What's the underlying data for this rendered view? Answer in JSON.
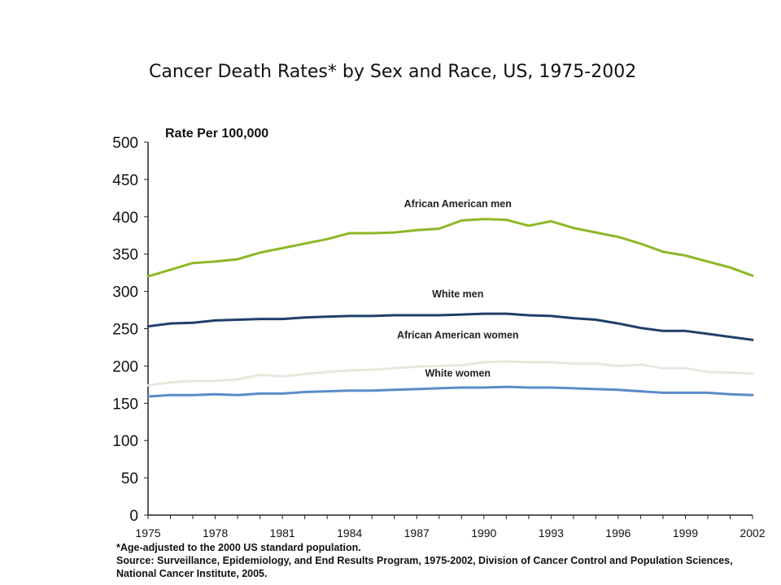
{
  "chart_data": {
    "type": "line",
    "title": "Cancer Death Rates* by Sex and Race, US, 1975-2002",
    "ylabel": "Rate Per 100,000",
    "xlabel": "",
    "ylim": [
      0,
      500
    ],
    "xlim": [
      1975,
      2002
    ],
    "yticks": [
      0,
      50,
      100,
      150,
      200,
      250,
      300,
      350,
      400,
      450,
      500
    ],
    "xtick_labels": [
      "1975",
      "1978",
      "1981",
      "1984",
      "1987",
      "1990",
      "1993",
      "1996",
      "1999",
      "2002"
    ],
    "grid": false,
    "x": [
      1975,
      1976,
      1977,
      1978,
      1979,
      1980,
      1981,
      1982,
      1983,
      1984,
      1985,
      1986,
      1987,
      1988,
      1989,
      1990,
      1991,
      1992,
      1993,
      1994,
      1995,
      1996,
      1997,
      1998,
      1999,
      2000,
      2001,
      2002
    ],
    "series": [
      {
        "name": "African American men",
        "color": "#8db826",
        "values": [
          320,
          329,
          338,
          340,
          343,
          352,
          358,
          364,
          370,
          378,
          378,
          379,
          382,
          384,
          395,
          397,
          396,
          388,
          394,
          385,
          379,
          373,
          364,
          353,
          348,
          340,
          332,
          321
        ]
      },
      {
        "name": "White men",
        "color": "#1f3f6b",
        "values": [
          253,
          257,
          258,
          261,
          262,
          263,
          263,
          265,
          266,
          267,
          267,
          268,
          268,
          268,
          269,
          270,
          270,
          268,
          267,
          264,
          262,
          257,
          251,
          247,
          247,
          243,
          239,
          235
        ]
      },
      {
        "name": "African American women",
        "color": "#e8e8df",
        "values": [
          174,
          178,
          180,
          180,
          182,
          188,
          186,
          189,
          192,
          194,
          195,
          197,
          199,
          200,
          201,
          205,
          206,
          205,
          205,
          203,
          203,
          200,
          202,
          197,
          197,
          192,
          191,
          190
        ]
      },
      {
        "name": "White women",
        "color": "#5b8cc8",
        "values": [
          159,
          161,
          161,
          162,
          161,
          163,
          163,
          165,
          166,
          167,
          167,
          168,
          169,
          170,
          171,
          171,
          172,
          171,
          171,
          170,
          169,
          168,
          166,
          164,
          164,
          164,
          162,
          161
        ]
      }
    ]
  },
  "footnote": {
    "age_adjusted": "*Age-adjusted to the 2000 US standard population.",
    "source": "Source: Surveillance, Epidemiology, and End Results Program, 1975-2002, Division of Cancer Control and Population Sciences, National Cancer Institute, 2005."
  }
}
